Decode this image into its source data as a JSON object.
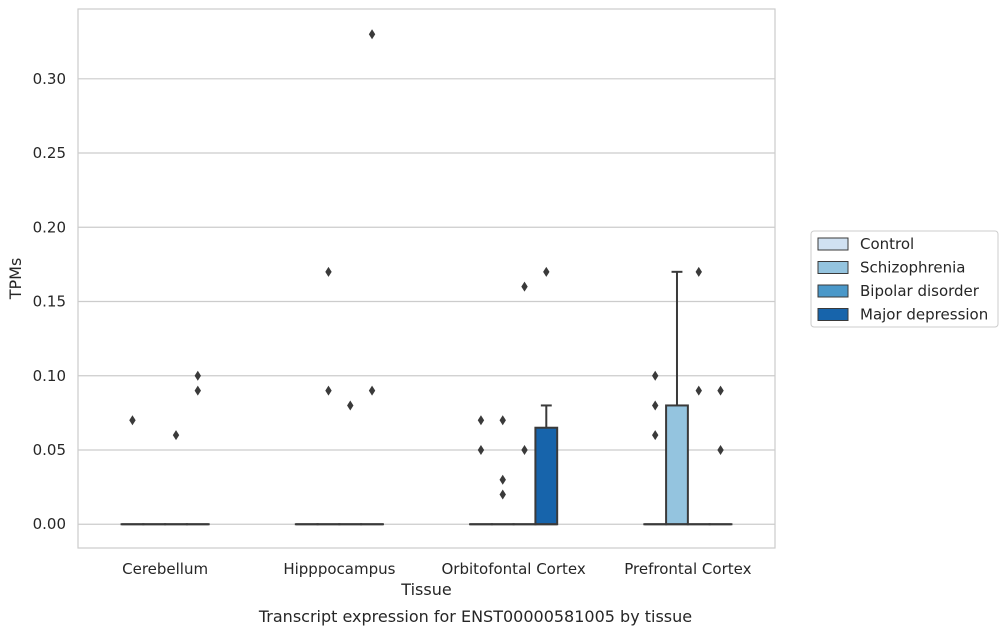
{
  "caption": "Transcript expression for ENST00000581005 by tissue",
  "chart_data": {
    "type": "box",
    "xlabel": "Tissue",
    "ylabel": "TPMs",
    "ylim": [
      -0.016,
      0.347
    ],
    "yticks": [
      "0.00",
      "0.05",
      "0.10",
      "0.15",
      "0.20",
      "0.25",
      "0.30"
    ],
    "ytick_values": [
      0,
      0.05,
      0.1,
      0.15,
      0.2,
      0.25,
      0.3
    ],
    "grid": true,
    "legend_position": "right",
    "categories": [
      "Cerebellum",
      "Hipppocampus",
      "Orbitofontal Cortex",
      "Prefrontal Cortex"
    ],
    "series": [
      {
        "name": "Control",
        "color": "#d0e1f2",
        "boxes": [
          {
            "q1": 0,
            "median": 0,
            "q3": 0,
            "whisker_low": 0,
            "whisker_high": 0,
            "outliers": [
              0.07
            ]
          },
          {
            "q1": 0,
            "median": 0,
            "q3": 0,
            "whisker_low": 0,
            "whisker_high": 0,
            "outliers": []
          },
          {
            "q1": 0,
            "median": 0,
            "q3": 0,
            "whisker_low": 0,
            "whisker_high": 0,
            "outliers": [
              0.07,
              0.05
            ]
          },
          {
            "q1": 0,
            "median": 0,
            "q3": 0,
            "whisker_low": 0,
            "whisker_high": 0,
            "outliers": [
              0.1,
              0.08,
              0.06
            ]
          }
        ]
      },
      {
        "name": "Schizophrenia",
        "color": "#94c4df",
        "boxes": [
          {
            "q1": 0,
            "median": 0,
            "q3": 0,
            "whisker_low": 0,
            "whisker_high": 0,
            "outliers": []
          },
          {
            "q1": 0,
            "median": 0,
            "q3": 0,
            "whisker_low": 0,
            "whisker_high": 0,
            "outliers": [
              0.17,
              0.09
            ]
          },
          {
            "q1": 0,
            "median": 0,
            "q3": 0,
            "whisker_low": 0,
            "whisker_high": 0,
            "outliers": [
              0.07,
              0.03,
              0.02
            ]
          },
          {
            "q1": 0,
            "median": 0,
            "q3": 0.08,
            "whisker_low": 0,
            "whisker_high": 0.17,
            "outliers": []
          }
        ]
      },
      {
        "name": "Bipolar disorder",
        "color": "#4a98c9",
        "boxes": [
          {
            "q1": 0,
            "median": 0,
            "q3": 0,
            "whisker_low": 0,
            "whisker_high": 0,
            "outliers": [
              0.06
            ]
          },
          {
            "q1": 0,
            "median": 0,
            "q3": 0,
            "whisker_low": 0,
            "whisker_high": 0,
            "outliers": [
              0.08
            ]
          },
          {
            "q1": 0,
            "median": 0,
            "q3": 0,
            "whisker_low": 0,
            "whisker_high": 0,
            "outliers": [
              0.16,
              0.05
            ]
          },
          {
            "q1": 0,
            "median": 0,
            "q3": 0,
            "whisker_low": 0,
            "whisker_high": 0,
            "outliers": [
              0.17,
              0.09
            ]
          }
        ]
      },
      {
        "name": "Major depression",
        "color": "#1764ab",
        "boxes": [
          {
            "q1": 0,
            "median": 0,
            "q3": 0,
            "whisker_low": 0,
            "whisker_high": 0,
            "outliers": [
              0.1,
              0.09
            ]
          },
          {
            "q1": 0,
            "median": 0,
            "q3": 0,
            "whisker_low": 0,
            "whisker_high": 0,
            "outliers": [
              0.33,
              0.09
            ]
          },
          {
            "q1": 0,
            "median": 0,
            "q3": 0.065,
            "whisker_low": 0,
            "whisker_high": 0.08,
            "outliers": [
              0.17
            ]
          },
          {
            "q1": 0,
            "median": 0,
            "q3": 0,
            "whisker_low": 0,
            "whisker_high": 0,
            "outliers": [
              0.09,
              0.05
            ]
          }
        ]
      }
    ]
  }
}
